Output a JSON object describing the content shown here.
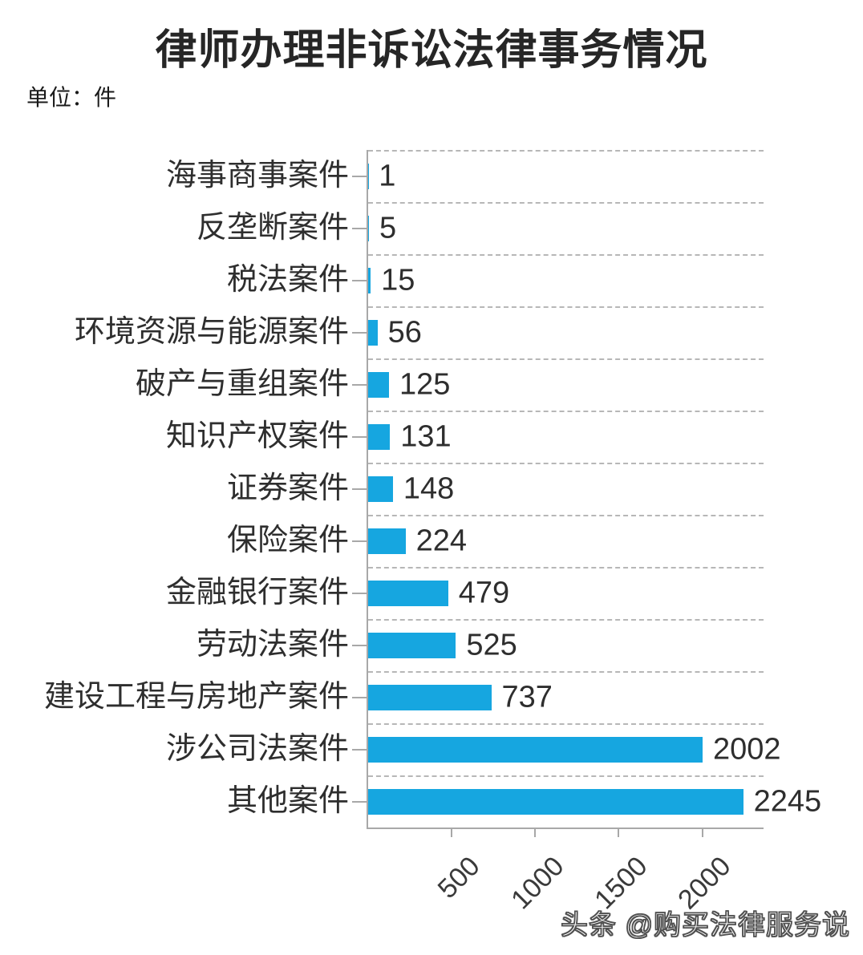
{
  "title": "律师办理非诉讼法律事务情况",
  "unit_label": "单位：件",
  "watermark": "头条 @购买法律服务说",
  "colors": {
    "bar": "#16a6e0",
    "axis": "#a8a8a8",
    "gridline": "#b7b7b7",
    "title_text": "#262626",
    "label_text": "#2e2e2e",
    "watermark_fill": "#ffffff",
    "watermark_outline": "#4f4f4f"
  },
  "chart_data": {
    "type": "bar",
    "orientation": "horizontal",
    "title": "律师办理非诉讼法律事务情况",
    "unit": "件",
    "xlabel": "",
    "ylabel": "",
    "categories": [
      "海事商事案件",
      "反垄断案件",
      "税法案件",
      "环境资源与能源案件",
      "破产与重组案件",
      "知识产权案件",
      "证券案件",
      "保险案件",
      "金融银行案件",
      "劳动法案件",
      "建设工程与房地产案件",
      "涉公司法案件",
      "其他案件"
    ],
    "values": [
      1,
      5,
      15,
      56,
      125,
      131,
      148,
      224,
      479,
      525,
      737,
      2002,
      2245
    ],
    "value_labels_shown": true,
    "xticks": [
      500,
      1000,
      1500,
      2000
    ],
    "xlim": [
      0,
      2367
    ],
    "grid": "dashed horizontal separators between categories",
    "legend": "none",
    "bar_color": "#16a6e0"
  }
}
